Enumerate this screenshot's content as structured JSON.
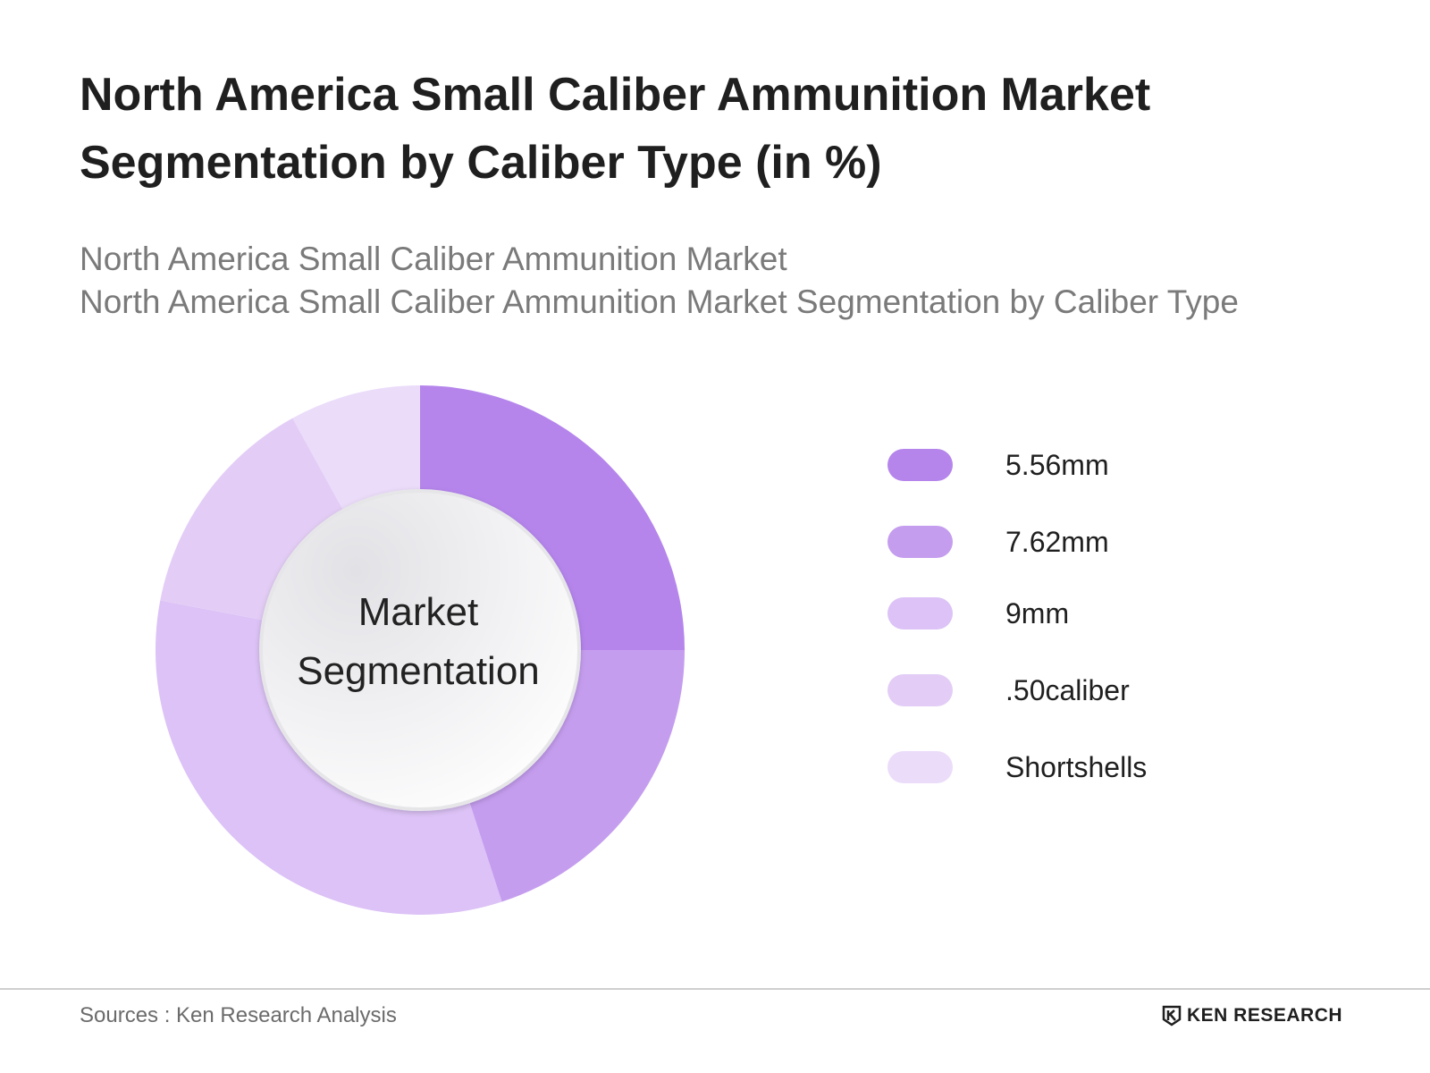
{
  "title_line1": "North America Small Caliber Ammunition Market",
  "title_line2": "Segmentation by Caliber Type (in %)",
  "subtitle_line1": "North America Small Caliber Ammunition Market",
  "subtitle_line2": "North America Small Caliber Ammunition Market Segmentation by Caliber Type",
  "center_label_line1": "Market",
  "center_label_line2": "Segmentation",
  "footer": {
    "source": "Sources : Ken Research Analysis",
    "brand": "KEN RESEARCH"
  },
  "chart_data": {
    "type": "pie",
    "title": "North America Small Caliber Ammunition Market Segmentation by Caliber Type (in %)",
    "categories": [
      "5.56mm",
      "7.62mm",
      "9mm",
      ".50caliber",
      "Shortshells"
    ],
    "values": [
      25,
      20,
      33,
      14,
      8
    ],
    "colors": [
      "#b585ec",
      "#c59def",
      "#dcc2f6",
      "#e3cdf6",
      "#ebdcfa"
    ],
    "legend_position": "right"
  }
}
